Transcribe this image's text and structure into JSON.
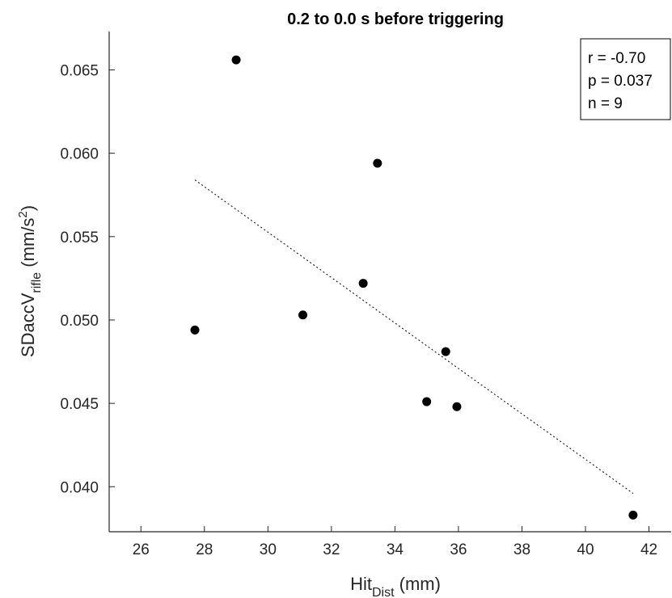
{
  "chart_data": {
    "type": "scatter",
    "title": "0.2 to 0.0 s before triggering",
    "xlabel": {
      "base": "Hit",
      "sub": "Dist",
      "rest": " (mm)"
    },
    "ylabel": {
      "base": "SDaccV",
      "sub": "rifle",
      "pre": " (mm/s",
      "sup": "2",
      "post": ")"
    },
    "xlim": [
      25,
      42.7
    ],
    "ylim": [
      0.0373,
      0.0673
    ],
    "xticks": [
      26,
      28,
      30,
      32,
      34,
      36,
      38,
      40,
      42
    ],
    "xtick_labels": [
      "26",
      "28",
      "30",
      "32",
      "34",
      "36",
      "38",
      "40",
      "42"
    ],
    "yticks": [
      0.04,
      0.045,
      0.05,
      0.055,
      0.06,
      0.065
    ],
    "ytick_labels": [
      "0.040",
      "0.045",
      "0.050",
      "0.055",
      "0.060",
      "0.065"
    ],
    "points": [
      {
        "x": 27.7,
        "y": 0.0494
      },
      {
        "x": 29.0,
        "y": 0.0656
      },
      {
        "x": 31.1,
        "y": 0.0503
      },
      {
        "x": 33.0,
        "y": 0.0522
      },
      {
        "x": 33.45,
        "y": 0.0594
      },
      {
        "x": 35.0,
        "y": 0.0451
      },
      {
        "x": 35.6,
        "y": 0.0481
      },
      {
        "x": 35.95,
        "y": 0.0448
      },
      {
        "x": 41.5,
        "y": 0.0383
      }
    ],
    "fit_line": {
      "x": [
        27.7,
        41.5
      ],
      "y": [
        0.0584,
        0.0396
      ],
      "style": "dotted"
    },
    "grid": false,
    "stats": [
      "r = -0.70",
      "p = 0.037",
      "n = 9"
    ],
    "stats_placement": "top-right",
    "colors": {
      "points": "#000000",
      "axis": "#262626",
      "fit": "#000000"
    }
  }
}
